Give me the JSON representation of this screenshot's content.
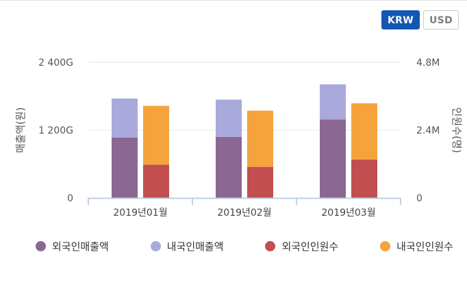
{
  "currency": {
    "options": [
      {
        "label": "KRW",
        "active": true
      },
      {
        "label": "USD",
        "active": false
      }
    ]
  },
  "chart_data": {
    "type": "bar",
    "stacked": true,
    "categories": [
      "2019년01월",
      "2019년02월",
      "2019년03월"
    ],
    "ylabel": "매출액(원)",
    "y2label": "인원수(명)",
    "yticks": [
      "0",
      "1 200G",
      "2 400G"
    ],
    "y2ticks": [
      "0",
      "2.4M",
      "4.8M"
    ],
    "ylim": [
      0,
      2400
    ],
    "y_unit": "G",
    "y2lim": [
      0,
      4.8
    ],
    "y2_unit": "M",
    "series": [
      {
        "name": "외국인매출액",
        "axis": "left",
        "stack": "sales",
        "color": "#8b6793",
        "values": [
          1070,
          1080,
          1390
        ]
      },
      {
        "name": "내국인매출액",
        "axis": "left",
        "stack": "sales",
        "color": "#a9a9dc",
        "values": [
          690,
          660,
          620
        ]
      },
      {
        "name": "외국인인원수",
        "axis": "right",
        "stack": "people",
        "color": "#c24e50",
        "values": [
          1.18,
          1.1,
          1.36
        ]
      },
      {
        "name": "내국인인원수",
        "axis": "right",
        "stack": "people",
        "color": "#f5a33d",
        "values": [
          2.08,
          1.99,
          1.99
        ]
      }
    ],
    "legend_position": "bottom"
  }
}
